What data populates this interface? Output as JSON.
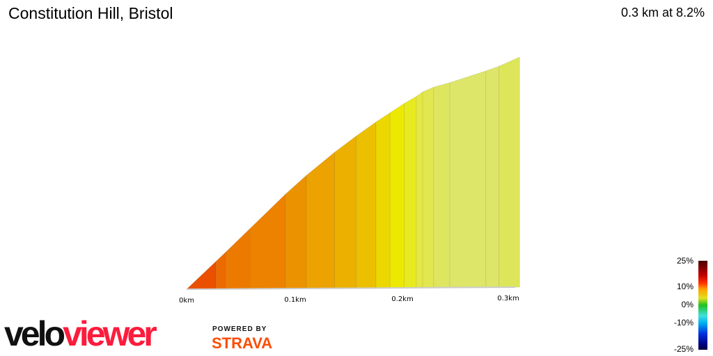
{
  "title": "Constitution Hill, Bristol",
  "summary": "0.3 km at 8.2%",
  "logo": {
    "velo": "velo",
    "viewer": "viewer",
    "powered_by": "POWERED BY",
    "strava": "STRAVA"
  },
  "legend": {
    "labels": [
      "25%",
      "10%",
      "0%",
      "-10%",
      "-25%"
    ]
  },
  "chart_data": {
    "type": "area",
    "xlabel": "",
    "ylabel": "",
    "x_ticks": [
      "0km",
      "0.1km",
      "0.2km",
      "0.3km"
    ],
    "xlim": [
      0,
      0.306
    ],
    "profile_km": [
      0,
      0.027,
      0.036,
      0.058,
      0.091,
      0.11,
      0.136,
      0.156,
      0.174,
      0.187,
      0.2,
      0.211,
      0.217,
      0.227,
      0.242,
      0.275,
      0.287,
      0.306
    ],
    "relative_elevation": [
      0,
      0.12,
      0.16,
      0.26,
      0.41,
      0.49,
      0.59,
      0.66,
      0.72,
      0.76,
      0.8,
      0.83,
      0.85,
      0.87,
      0.89,
      0.94,
      0.96,
      1.0
    ],
    "segment_colors": [
      "#ea5000",
      "#ec6a00",
      "#ec7a00",
      "#ec8200",
      "#eb9200",
      "#eca200",
      "#ecb000",
      "#ecc000",
      "#ecd800",
      "#ece800",
      "#e8ea20",
      "#e4e840",
      "#e2e650",
      "#dee660",
      "#dde668",
      "#dde668",
      "#dde65a"
    ]
  }
}
